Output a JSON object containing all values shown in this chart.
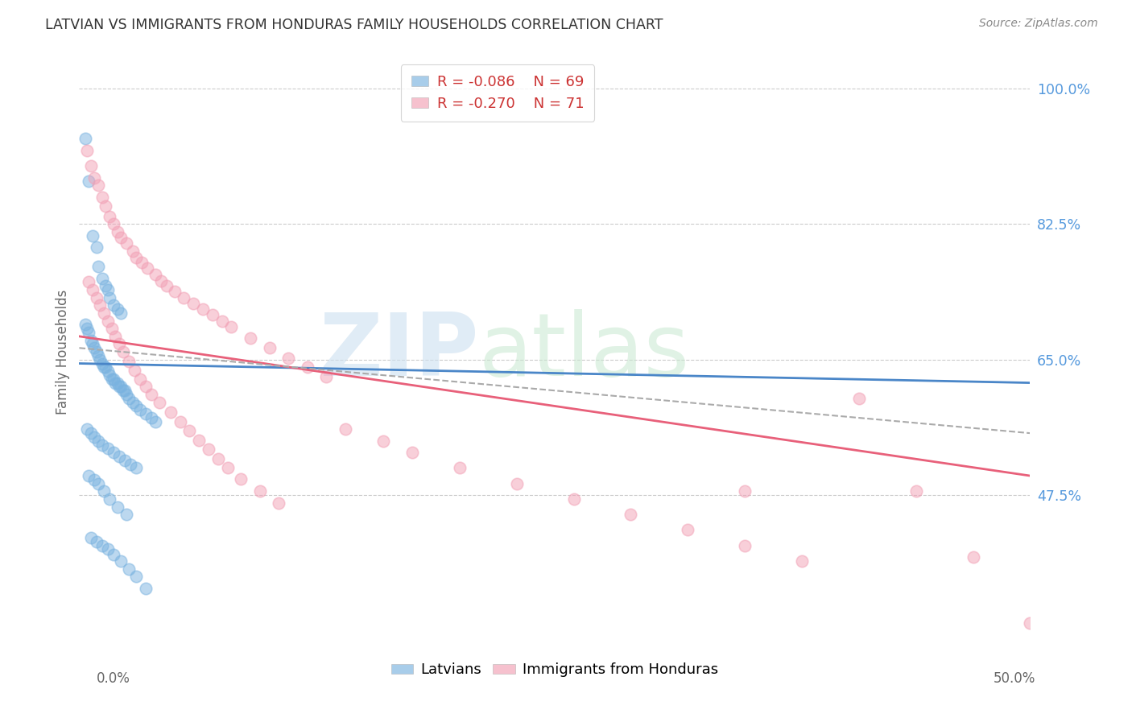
{
  "title": "LATVIAN VS IMMIGRANTS FROM HONDURAS FAMILY HOUSEHOLDS CORRELATION CHART",
  "source": "Source: ZipAtlas.com",
  "ylabel": "Family Households",
  "ytick_vals": [
    0.475,
    0.65,
    0.825,
    1.0
  ],
  "ytick_labels": [
    "47.5%",
    "65.0%",
    "82.5%",
    "100.0%"
  ],
  "xmin": 0.0,
  "xmax": 0.5,
  "ymin": 0.28,
  "ymax": 1.04,
  "legend_blue_R": "R = -0.086",
  "legend_blue_N": "N = 69",
  "legend_pink_R": "R = -0.270",
  "legend_pink_N": "N = 71",
  "blue_color": "#7ab3e0",
  "pink_color": "#f2a0b5",
  "blue_line_color": "#4a86c8",
  "pink_line_color": "#e8607a",
  "dash_color": "#aaaaaa",
  "blue_scatter_x": [
    0.003,
    0.005,
    0.007,
    0.009,
    0.01,
    0.012,
    0.014,
    0.015,
    0.016,
    0.018,
    0.02,
    0.022,
    0.003,
    0.004,
    0.005,
    0.006,
    0.007,
    0.008,
    0.009,
    0.01,
    0.011,
    0.012,
    0.013,
    0.014,
    0.015,
    0.016,
    0.017,
    0.018,
    0.019,
    0.02,
    0.021,
    0.022,
    0.023,
    0.024,
    0.025,
    0.026,
    0.028,
    0.03,
    0.032,
    0.035,
    0.038,
    0.04,
    0.004,
    0.006,
    0.008,
    0.01,
    0.012,
    0.015,
    0.018,
    0.021,
    0.024,
    0.027,
    0.03,
    0.005,
    0.008,
    0.01,
    0.013,
    0.016,
    0.02,
    0.025,
    0.006,
    0.009,
    0.012,
    0.015,
    0.018,
    0.022,
    0.026,
    0.03,
    0.035
  ],
  "blue_scatter_y": [
    0.935,
    0.88,
    0.81,
    0.795,
    0.77,
    0.755,
    0.745,
    0.74,
    0.73,
    0.72,
    0.715,
    0.71,
    0.695,
    0.69,
    0.685,
    0.675,
    0.67,
    0.665,
    0.66,
    0.655,
    0.65,
    0.645,
    0.64,
    0.64,
    0.635,
    0.63,
    0.625,
    0.625,
    0.62,
    0.62,
    0.615,
    0.615,
    0.61,
    0.61,
    0.605,
    0.6,
    0.595,
    0.59,
    0.585,
    0.58,
    0.575,
    0.57,
    0.56,
    0.555,
    0.55,
    0.545,
    0.54,
    0.535,
    0.53,
    0.525,
    0.52,
    0.515,
    0.51,
    0.5,
    0.495,
    0.49,
    0.48,
    0.47,
    0.46,
    0.45,
    0.42,
    0.415,
    0.41,
    0.405,
    0.398,
    0.39,
    0.38,
    0.37,
    0.355
  ],
  "pink_scatter_x": [
    0.004,
    0.006,
    0.008,
    0.01,
    0.012,
    0.014,
    0.016,
    0.018,
    0.02,
    0.022,
    0.025,
    0.028,
    0.03,
    0.033,
    0.036,
    0.04,
    0.043,
    0.046,
    0.05,
    0.055,
    0.06,
    0.065,
    0.07,
    0.075,
    0.08,
    0.09,
    0.1,
    0.11,
    0.12,
    0.13,
    0.005,
    0.007,
    0.009,
    0.011,
    0.013,
    0.015,
    0.017,
    0.019,
    0.021,
    0.023,
    0.026,
    0.029,
    0.032,
    0.035,
    0.038,
    0.042,
    0.048,
    0.053,
    0.058,
    0.063,
    0.068,
    0.073,
    0.078,
    0.085,
    0.095,
    0.105,
    0.14,
    0.16,
    0.175,
    0.2,
    0.23,
    0.26,
    0.29,
    0.32,
    0.35,
    0.38,
    0.41,
    0.44,
    0.47,
    0.5,
    0.35
  ],
  "pink_scatter_y": [
    0.92,
    0.9,
    0.885,
    0.875,
    0.86,
    0.848,
    0.835,
    0.825,
    0.815,
    0.808,
    0.8,
    0.79,
    0.782,
    0.775,
    0.768,
    0.76,
    0.752,
    0.745,
    0.738,
    0.73,
    0.722,
    0.715,
    0.708,
    0.7,
    0.692,
    0.678,
    0.665,
    0.652,
    0.64,
    0.628,
    0.75,
    0.74,
    0.73,
    0.72,
    0.71,
    0.7,
    0.69,
    0.68,
    0.67,
    0.66,
    0.648,
    0.636,
    0.625,
    0.615,
    0.605,
    0.595,
    0.582,
    0.57,
    0.558,
    0.546,
    0.534,
    0.522,
    0.51,
    0.496,
    0.48,
    0.465,
    0.56,
    0.545,
    0.53,
    0.51,
    0.49,
    0.47,
    0.45,
    0.43,
    0.41,
    0.39,
    0.6,
    0.48,
    0.395,
    0.31,
    0.48
  ],
  "blue_trendline": [
    0.0,
    0.5,
    0.645,
    0.62
  ],
  "pink_trendline": [
    0.0,
    0.5,
    0.68,
    0.5
  ],
  "dash_trendline": [
    0.0,
    0.5,
    0.665,
    0.555
  ]
}
